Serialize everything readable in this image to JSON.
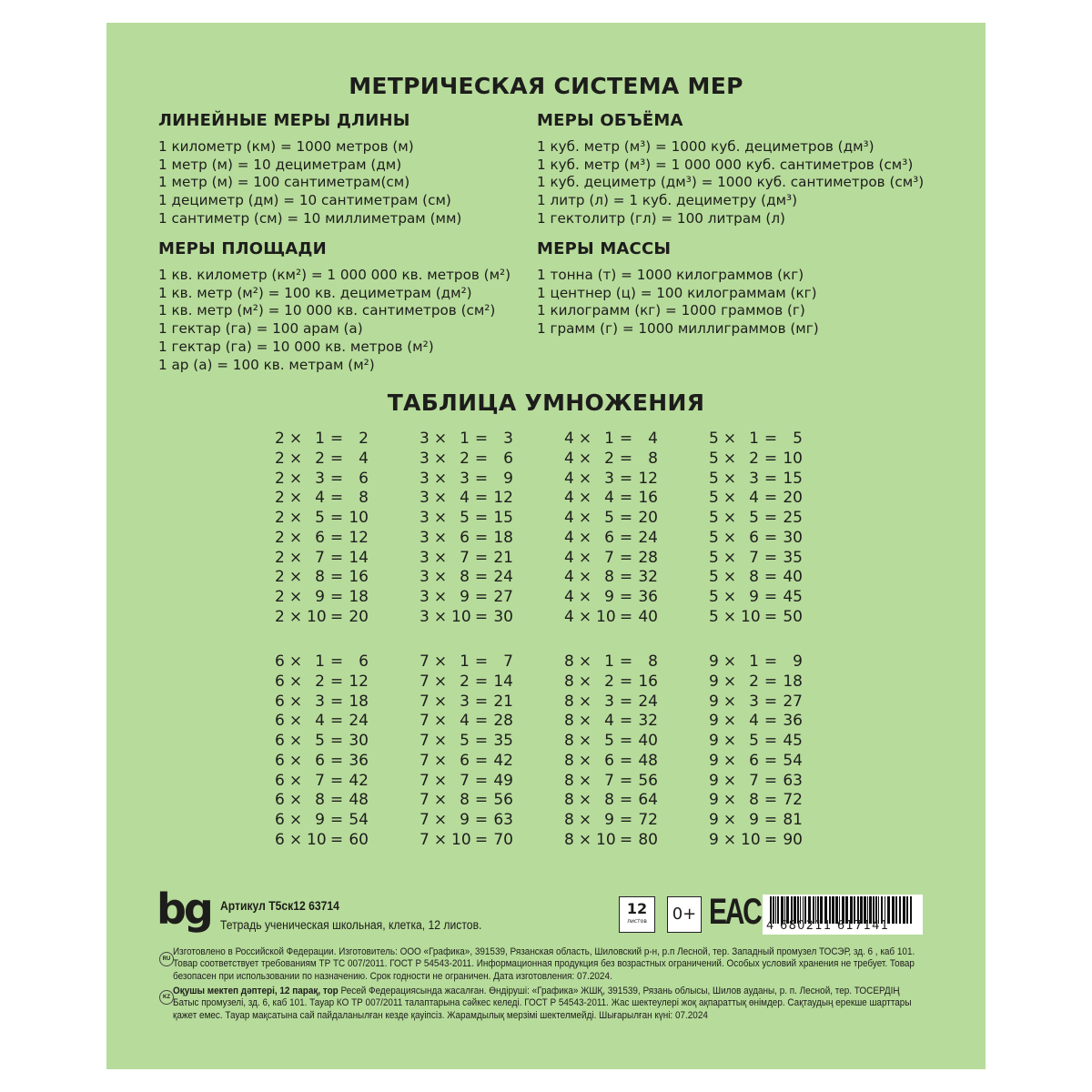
{
  "title": "МЕТРИЧЕСКАЯ СИСТЕМА МЕР",
  "sections": [
    {
      "heading": "ЛИНЕЙНЫЕ МЕРЫ ДЛИНЫ",
      "lines": [
        "1 километр (км) = 1000 метров (м)",
        "1 метр (м) = 10 дециметрам (дм)",
        "1 метр (м) = 100 сантиметрам(см)",
        "1 дециметр (дм) = 10 сантиметрам (см)",
        "1 сантиметр (см) = 10 миллиметрам (мм)"
      ]
    },
    {
      "heading": "МЕРЫ ОБЪЁМА",
      "lines": [
        "1 куб. метр (м³) = 1000 куб. дециметров (дм³)",
        "1 куб. метр (м³) = 1 000 000 куб. сантиметров (см³)",
        "1 куб. дециметр (дм³) = 1000 куб. сантиметров (см³)",
        "1 литр (л) = 1 куб. дециметру (дм³)",
        "1 гектолитр (гл) = 100 литрам (л)"
      ]
    },
    {
      "heading": "МЕРЫ ПЛОЩАДИ",
      "lines": [
        "1 кв. километр (км²) = 1 000 000 кв. метров (м²)",
        "1 кв. метр (м²) = 100 кв. дециметрам (дм²)",
        "1 кв. метр (м²) = 10 000 кв. сантиметров (см²)",
        "1 гектар (га) = 100 арам (а)",
        "1 гектар (га) = 10 000 кв. метров (м²)",
        "1 ар (а) = 100 кв. метрам (м²)"
      ]
    },
    {
      "heading": "МЕРЫ МАССЫ",
      "lines": [
        "1 тонна (т) = 1000 килограммов (кг)",
        "1 центнер (ц) = 100 килограммам (кг)",
        "1 килограмм (кг) = 1000 граммов (г)",
        "1 грамм (г) = 1000 миллиграммов (мг)"
      ]
    }
  ],
  "multiplication": {
    "title": "ТАБЛИЦА УМНОЖЕНИЯ",
    "times_sign": "×",
    "equals_sign": "=",
    "factors": [
      2,
      3,
      4,
      5,
      6,
      7,
      8,
      9
    ],
    "multipliers": [
      1,
      2,
      3,
      4,
      5,
      6,
      7,
      8,
      9,
      10
    ]
  },
  "footer": {
    "logo": "bg",
    "article": "Артикул Т5ск12 63714",
    "description": "Тетрадь ученическая школьная, клетка, 12 листов.",
    "sheets_number": "12",
    "sheets_label": "листов",
    "age_rating": "0+",
    "eac_mark": "EAC",
    "barcode_digits": "4 680211 617141",
    "ru_badge": "RU",
    "ru_text": "Изготовлено в Российской Федерации. Изготовитель: ООО «Графика», 391539, Рязанская область, Шиловский р-н, р.п Лесной, тер. Западный промузел ТОСЭР, зд. 6 , каб 101. Товар соответствует требованиям ТР ТС 007/2011. ГОСТ Р 54543-2011. Информационная продукция без возрастных ограничений. Особых условий хранения не требует. Товар безопасен при использовании по назначению. Срок годности не ограничен. Дата изготовления: 07.2024.",
    "kz_badge": "KZ",
    "kz_bold": "Оқушы мектеп дәптері, 12 парақ, тор",
    "kz_text": " Ресей Федерациясында жасалған. Өндіруші: «Графика» ЖШҚ, 391539, Рязань облысы, Шилов ауданы, р. п. Лесной, тер. ТОСЕРДІҢ Батыс промузелі, зд. 6, каб 101. Тауар КО ТР 007/2011 талаптарына сәйкес келеді. ГОСТ Р 54543-2011. Жас шектеулері жоқ ақпараттық өнімдер. Сақтаудың ерекше шарттары қажет емес. Тауар мақсатына сай пайдаланылған кезде қауіпсіз. Жарамдылық мерзімі шектелмейді. Шығарылған күні: 07.2024"
  },
  "colors": {
    "cover": "#b7db9b",
    "text": "#1d1d1b"
  }
}
